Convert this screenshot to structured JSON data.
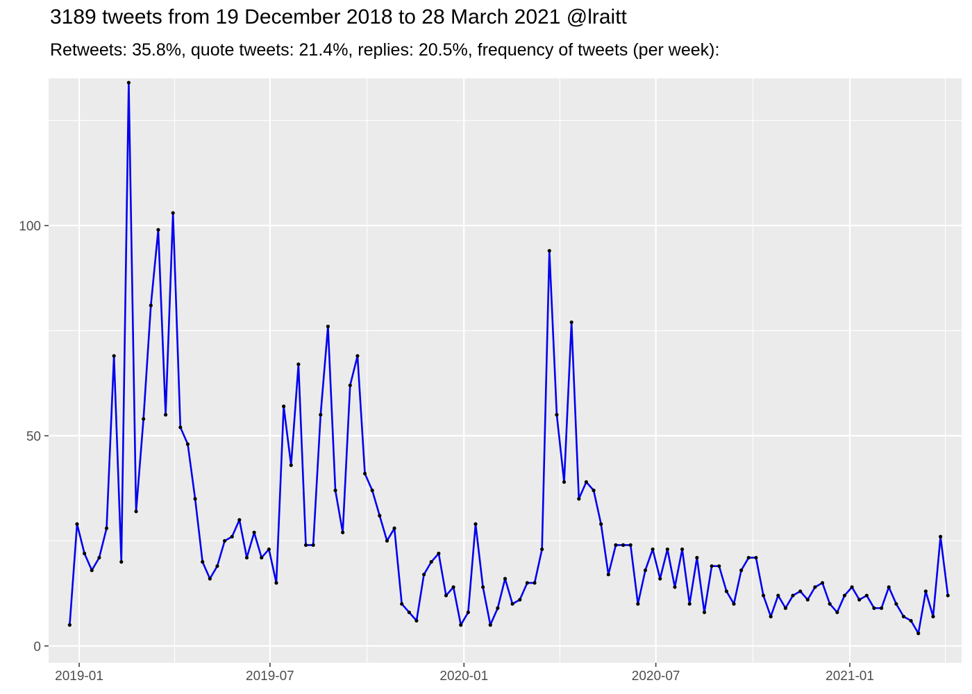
{
  "chart_data": {
    "type": "line",
    "title": "3189 tweets from 19 December 2018 to 28 March 2021 @lraitt",
    "subtitle": "Retweets: 35.8%, quote tweets: 21.4%, replies: 20.5%, frequency of tweets (per week):",
    "xlabel": "",
    "ylabel": "",
    "x_start": "2018-12-23",
    "x_step_days": 7,
    "x_ticks": [
      {
        "label": "2019-01",
        "date": "2019-01-01"
      },
      {
        "label": "2019-07",
        "date": "2019-07-01"
      },
      {
        "label": "2020-01",
        "date": "2020-01-01"
      },
      {
        "label": "2020-07",
        "date": "2020-07-01"
      },
      {
        "label": "2021-01",
        "date": "2021-01-01"
      }
    ],
    "y_ticks": [
      0,
      50,
      100
    ],
    "ylim": [
      -4,
      135
    ],
    "xlim": [
      "2018-12-03",
      "2021-04-17"
    ],
    "grid": true,
    "legend": "none",
    "series": [
      {
        "color": "#0000ee",
        "marker_color": "#000000",
        "values": [
          5,
          29,
          22,
          18,
          21,
          28,
          69,
          20,
          134,
          32,
          54,
          81,
          99,
          55,
          103,
          52,
          48,
          35,
          20,
          16,
          19,
          25,
          26,
          30,
          21,
          27,
          21,
          23,
          15,
          57,
          43,
          67,
          24,
          24,
          55,
          76,
          37,
          27,
          62,
          69,
          41,
          37,
          31,
          25,
          28,
          10,
          8,
          6,
          17,
          20,
          22,
          12,
          14,
          5,
          8,
          29,
          14,
          5,
          9,
          16,
          10,
          11,
          15,
          15,
          23,
          94,
          55,
          39,
          77,
          35,
          39,
          37,
          29,
          17,
          24,
          24,
          24,
          10,
          18,
          23,
          16,
          23,
          14,
          23,
          10,
          21,
          8,
          19,
          19,
          13,
          10,
          18,
          21,
          21,
          12,
          7,
          12,
          9,
          12,
          13,
          11,
          14,
          15,
          10,
          8,
          12,
          14,
          11,
          12,
          9,
          9,
          14,
          10,
          7,
          6,
          3,
          13,
          7,
          26,
          12
        ]
      }
    ]
  }
}
